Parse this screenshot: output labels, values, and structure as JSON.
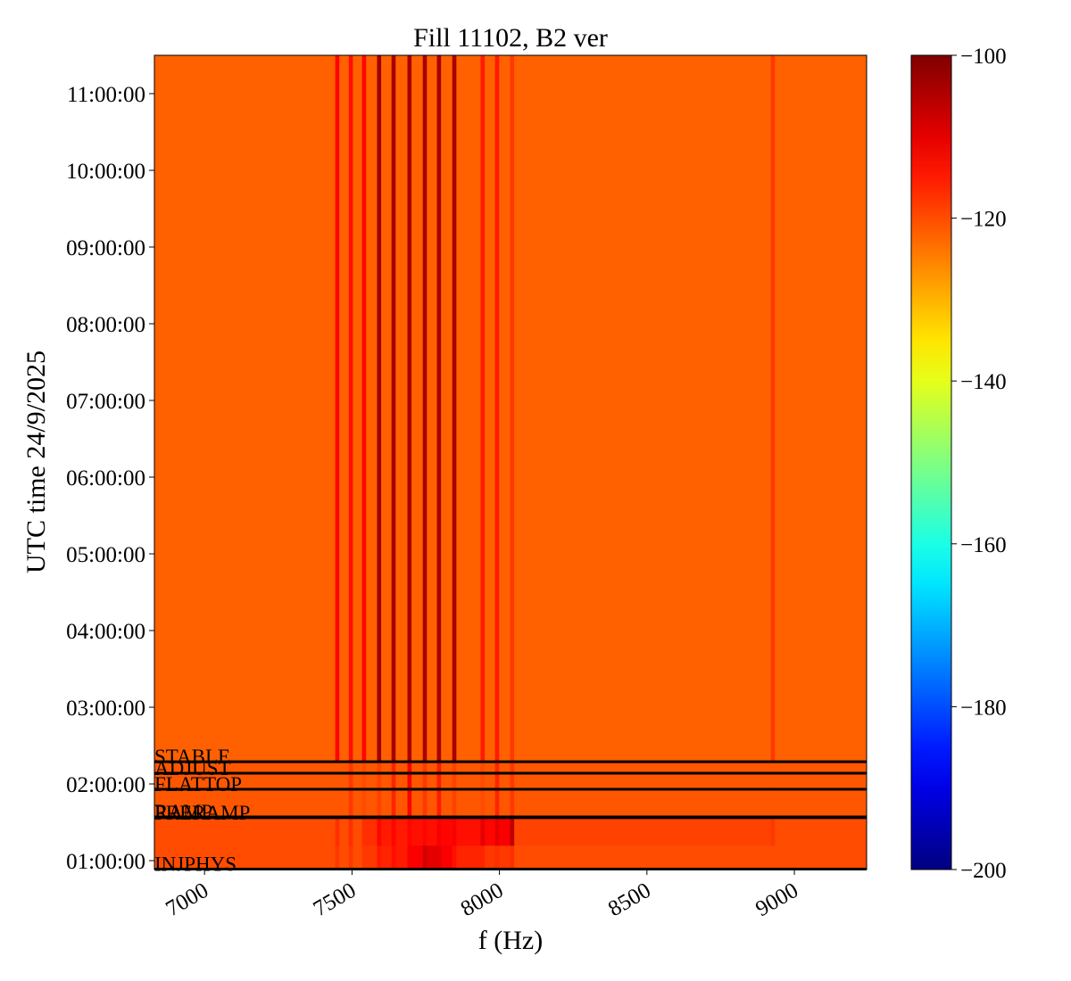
{
  "chart_data": {
    "type": "heatmap",
    "title": "Fill 11102, B2 ver",
    "xlabel": "f (Hz)",
    "ylabel": "UTC time 24/9/2025",
    "colormap": "jet",
    "xlim": [
      6830,
      9245
    ],
    "xticks": [
      7000,
      7500,
      8000,
      8500,
      9000
    ],
    "ylim": [
      0.884,
      11.5
    ],
    "yticks": [
      {
        "value": 1,
        "label": "01:00:00"
      },
      {
        "value": 2,
        "label": "02:00:00"
      },
      {
        "value": 3,
        "label": "03:00:00"
      },
      {
        "value": 4,
        "label": "04:00:00"
      },
      {
        "value": 5,
        "label": "05:00:00"
      },
      {
        "value": 6,
        "label": "06:00:00"
      },
      {
        "value": 7,
        "label": "07:00:00"
      },
      {
        "value": 8,
        "label": "08:00:00"
      },
      {
        "value": 9,
        "label": "09:00:00"
      },
      {
        "value": 10,
        "label": "10:00:00"
      },
      {
        "value": 11,
        "label": "11:00:00"
      }
    ],
    "clim": [
      -200,
      -100
    ],
    "cticks": [
      {
        "value": -100,
        "label": "−100"
      },
      {
        "value": -120,
        "label": "−120"
      },
      {
        "value": -140,
        "label": "−140"
      },
      {
        "value": -160,
        "label": "−160"
      },
      {
        "value": -180,
        "label": "−180"
      },
      {
        "value": -200,
        "label": "−200"
      }
    ],
    "xbins": [
      6830,
      7443,
      7457,
      7489,
      7503,
      7534,
      7548,
      7585,
      7599,
      7634,
      7648,
      7688,
      7702,
      7740,
      7754,
      7788,
      7802,
      7840,
      7854,
      7936,
      7950,
      7985,
      7999,
      8036,
      8050,
      8920,
      8934,
      9245
    ],
    "ybins": [
      0.884,
      1.2,
      1.56,
      2.29,
      11.5
    ],
    "values": [
      [
        -120,
        -118,
        -120,
        -118,
        -120,
        -118,
        -118,
        -115,
        -116,
        -114,
        -115,
        -112,
        -112,
        -108,
        -110,
        -110,
        -112,
        -114,
        -116,
        -116,
        -118,
        -117,
        -118,
        -117,
        -120,
        -120,
        -120
      ],
      [
        -120,
        -117,
        -120,
        -117,
        -120,
        -117,
        -117,
        -113,
        -115,
        -113,
        -115,
        -113,
        -114,
        -113,
        -114,
        -112,
        -113,
        -112,
        -114,
        -110,
        -113,
        -110,
        -112,
        -106,
        -119,
        -118,
        -120
      ],
      [
        -121,
        -121,
        -121,
        -118,
        -121,
        -120,
        -121,
        -119,
        -121,
        -116,
        -121,
        -112,
        -121,
        -118,
        -121,
        -115,
        -121,
        -119,
        -121,
        -120,
        -121,
        -116,
        -121,
        -118,
        -121,
        -121,
        -121
      ],
      [
        -122,
        -113,
        -122,
        -114,
        -122,
        -113,
        -122,
        -103,
        -122,
        -104,
        -122,
        -104,
        -122,
        -104,
        -122,
        -104,
        -122,
        -104,
        -122,
        -115,
        -122,
        -115,
        -122,
        -118,
        -122,
        -118,
        -122
      ]
    ],
    "annotations": [
      {
        "label": "STABLE",
        "time": 2.29
      },
      {
        "label": "ADJUST",
        "time": 2.14
      },
      {
        "label": "FLATTOP",
        "time": 1.93
      },
      {
        "label": "RAMP",
        "time": 1.57
      },
      {
        "label": "PRERAMP",
        "time": 1.56
      },
      {
        "label": "INJPHYS",
        "time": 0.89
      }
    ]
  }
}
